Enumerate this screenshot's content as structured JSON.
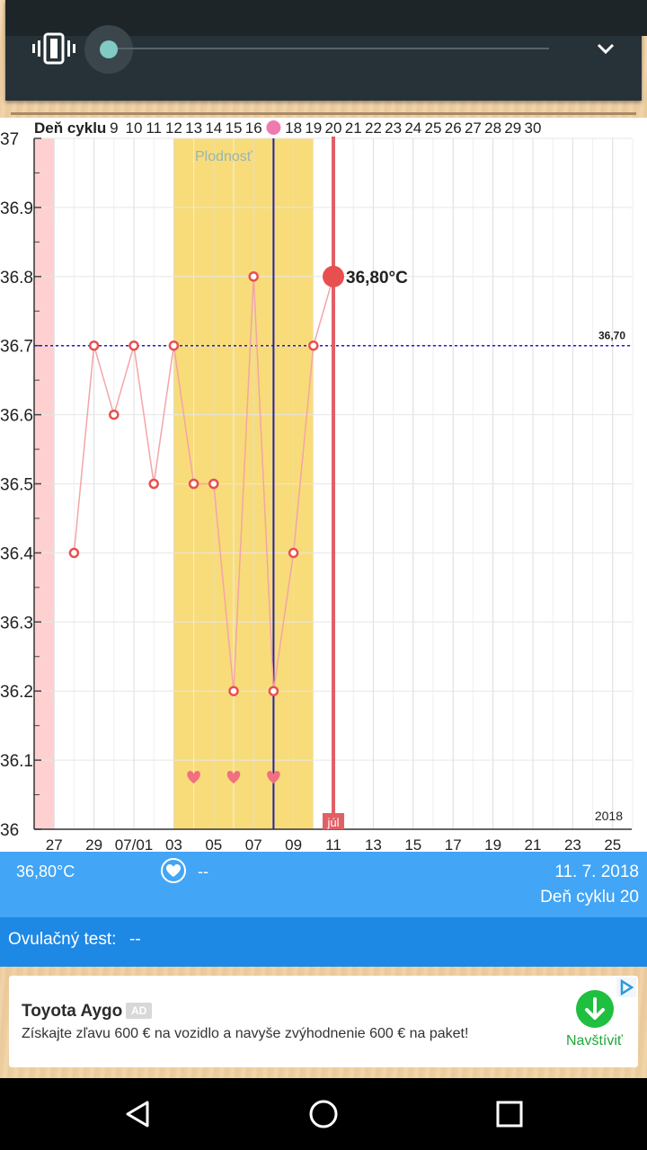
{
  "colors": {
    "accent_blue": "#42a5f5",
    "dark_blue": "#1e88e5",
    "fertile_yellow": "#f8dc7a",
    "menstruation_pink": "#ffd0d0",
    "temp_line": "#f4a5a5",
    "temp_point": "#e85050",
    "selected_line": "#e25f66",
    "ovulation_line": "#2222aa",
    "coverline": "#1a1ae0"
  },
  "icons": {
    "volume": "vibrate-icon",
    "expand": "chevron-down-icon",
    "heart": "heart-icon",
    "ad_choice": "ad-choices-icon",
    "download": "download-arrow-icon",
    "ovulation": "egg-icon"
  },
  "chart_data": {
    "type": "line",
    "top_axis_label": "Deň cyklu",
    "top_axis_ticks": [
      "9",
      "10",
      "11",
      "12",
      "13",
      "14",
      "15",
      "16",
      "",
      "18",
      "19",
      "20",
      "21",
      "22",
      "23",
      "24",
      "25",
      "26",
      "27",
      "28",
      "29",
      "30"
    ],
    "x_tick_labels": [
      "27",
      "29",
      "07/01",
      "03",
      "05",
      "07",
      "09",
      "11",
      "13",
      "15",
      "17",
      "19",
      "21",
      "23",
      "25"
    ],
    "y_tick_labels": [
      "37",
      "36.9",
      "36.8",
      "36.7",
      "36.6",
      "36.5",
      "36.4",
      "36.3",
      "36.2",
      "36.1",
      "36"
    ],
    "ylim": [
      36.0,
      37.0
    ],
    "xlim": [
      26,
      56
    ],
    "series": [
      {
        "x": [
          28,
          29,
          30,
          31,
          32,
          33,
          34,
          35,
          36,
          37,
          38,
          39,
          40,
          41
        ],
        "values": [
          36.4,
          36.7,
          36.6,
          36.7,
          36.5,
          36.7,
          36.5,
          36.5,
          36.2,
          36.8,
          36.2,
          36.4,
          36.7,
          36.8
        ]
      }
    ],
    "coverline": {
      "value": 36.7,
      "label": "36,70"
    },
    "fertile_window": {
      "from": 33,
      "to": 40,
      "label": "Plodnosť"
    },
    "menstruation": {
      "from": 26,
      "to": 27
    },
    "ovulation_day": 38,
    "selected": {
      "x": 41,
      "value": 36.8,
      "label": "36,80°C",
      "month_marker": "júl"
    },
    "intercourse_days": [
      34,
      36,
      38
    ],
    "year_label": "2018",
    "grid": true
  },
  "info": {
    "temperature": "36,80°C",
    "intercourse": "--",
    "date": "11. 7. 2018",
    "cycle_day": "Deň cyklu 20"
  },
  "ovulation_test": {
    "label": "Ovulačný test:",
    "value": "--"
  },
  "ad": {
    "title": "Toyota Aygo",
    "badge": "AD",
    "text": "Získajte zľavu 600 € na vozidlo a navyše zvýhodnenie 600 € na paket!",
    "cta": "Navštíviť"
  },
  "navbar": {
    "back": "back-icon",
    "home": "home-icon",
    "recents": "recents-icon"
  }
}
